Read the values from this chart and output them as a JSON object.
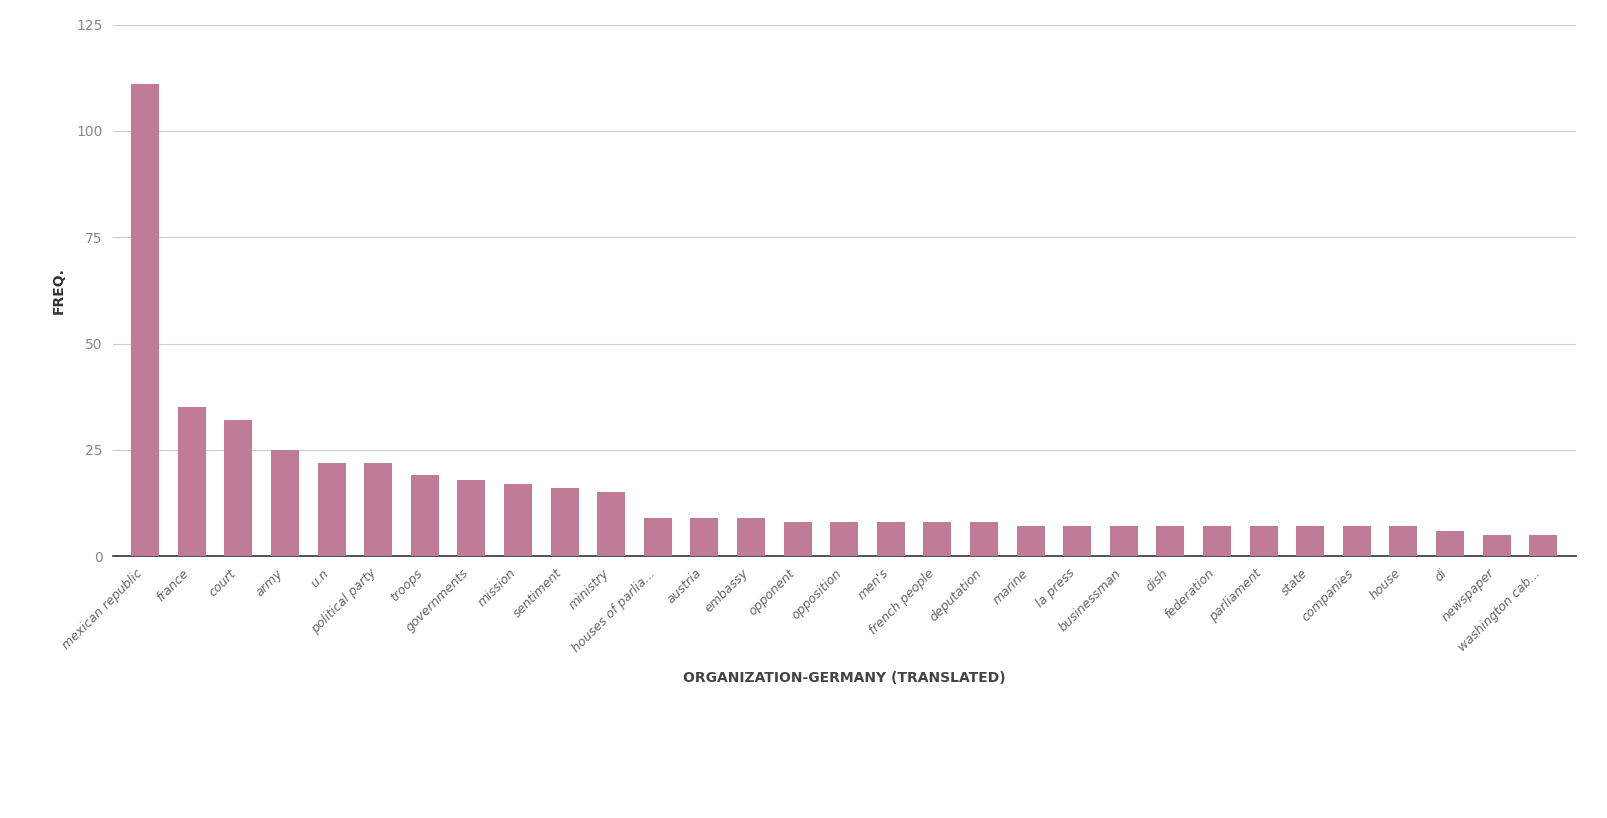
{
  "categories": [
    "mexican republic",
    "france",
    "court",
    "army",
    "u.n",
    "political party",
    "troops",
    "governments",
    "mission",
    "sentiment",
    "ministry",
    "houses of parlia...",
    "austria",
    "embassy",
    "opponent",
    "opposition",
    "men's",
    "french people",
    "deputation",
    "marine",
    "la press",
    "businessman",
    "dish",
    "federation",
    "parliament",
    "state",
    "companies",
    "house",
    "di",
    "newspaper",
    "washington cab..."
  ],
  "values": [
    111,
    35,
    32,
    25,
    22,
    22,
    19,
    18,
    17,
    16,
    15,
    9,
    9,
    9,
    8,
    8,
    8,
    8,
    8,
    7,
    7,
    7,
    7,
    7,
    7,
    7,
    7,
    7,
    6,
    5,
    5
  ],
  "bar_color": "#c07b96",
  "xlabel": "ORGANIZATION-GERMANY (TRANSLATED)",
  "ylabel": "FREQ.",
  "ylim": [
    0,
    125
  ],
  "yticks": [
    0,
    25,
    50,
    75,
    100,
    125
  ],
  "background_color": "#ffffff",
  "grid_color": "#cccccc",
  "xlabel_fontsize": 10,
  "ylabel_fontsize": 10,
  "tick_label_fontsize": 9,
  "ytick_fontsize": 10
}
